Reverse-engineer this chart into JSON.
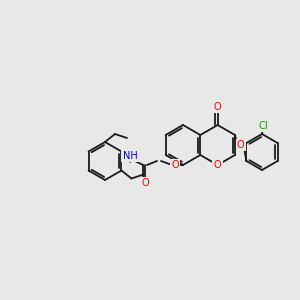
{
  "background_color": "#e8e8e8",
  "figsize": [
    3.0,
    3.0
  ],
  "dpi": 100,
  "bond_color": "#1a1a1a",
  "bond_lw": 1.3,
  "atom_colors": {
    "O": "#ff0000",
    "N": "#0000cc",
    "Cl": "#00aa00",
    "H": "#666666",
    "C": "#1a1a1a"
  }
}
